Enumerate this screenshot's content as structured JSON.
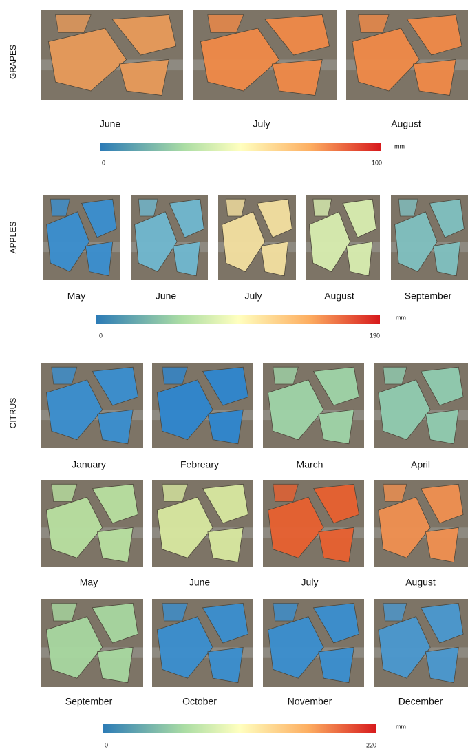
{
  "sections": [
    {
      "label": "GRAPES",
      "months": [
        "June",
        "July",
        "August"
      ],
      "colorbar": {
        "min": 0,
        "max": 100,
        "unit": "mm"
      }
    },
    {
      "label": "APPLES",
      "months": [
        "May",
        "June",
        "July",
        "August",
        "September"
      ],
      "colorbar": {
        "min": 0,
        "max": 190,
        "unit": "mm"
      }
    },
    {
      "label": "CITRUS",
      "months": [
        "January",
        "Febreary",
        "March",
        "April",
        "May",
        "June",
        "July",
        "August",
        "September",
        "October",
        "November",
        "December"
      ],
      "colorbar": {
        "min": 0,
        "max": 220,
        "unit": "mm"
      }
    }
  ]
}
